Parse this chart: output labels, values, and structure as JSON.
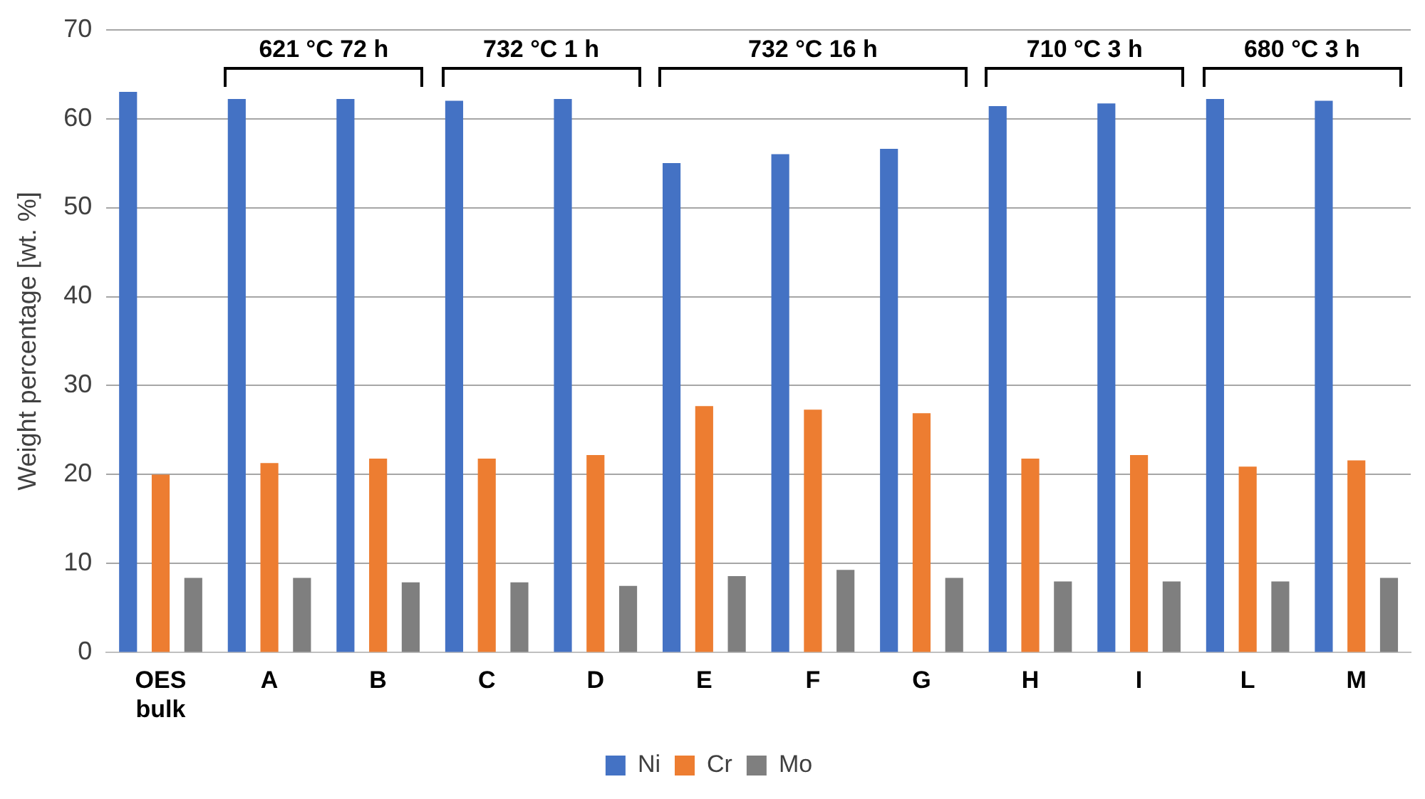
{
  "chart_data": {
    "type": "bar",
    "ylabel": "Weight percentage [wt. %]",
    "categories": [
      "OES bulk",
      "A",
      "B",
      "C",
      "D",
      "E",
      "F",
      "G",
      "H",
      "I",
      "L",
      "M"
    ],
    "series": [
      {
        "name": "Ni",
        "color": "#4472c4",
        "values": [
          63,
          62.2,
          62.2,
          62,
          62.2,
          55,
          56,
          56.6,
          61.4,
          61.7,
          62.2,
          62
        ]
      },
      {
        "name": "Cr",
        "color": "#ed7d31",
        "values": [
          20,
          21.3,
          21.8,
          21.8,
          22.2,
          27.7,
          27.3,
          26.9,
          21.8,
          22.2,
          20.9,
          21.6
        ]
      },
      {
        "name": "Mo",
        "color": "#7f7f7f",
        "values": [
          8.4,
          8.4,
          7.9,
          7.9,
          7.5,
          8.6,
          9.3,
          8.4,
          8,
          8,
          8,
          8.4
        ]
      }
    ],
    "ylim": [
      0,
      70
    ],
    "yticks": [
      0,
      10,
      20,
      30,
      40,
      50,
      60,
      70
    ],
    "grid": "y",
    "legend": "bottom",
    "annotations": [
      "621 °C 72 h",
      "732 °C 1 h",
      "732 °C 16 h",
      "710 °C 3 h",
      "680 °C 3 h"
    ]
  }
}
